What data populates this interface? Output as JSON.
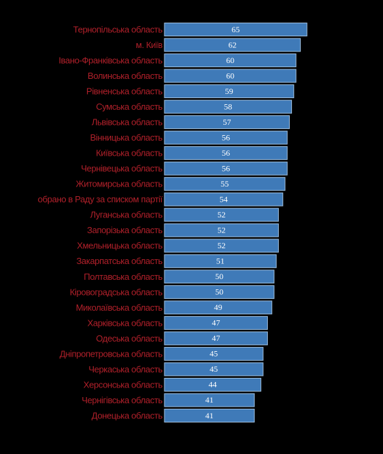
{
  "chart_data": {
    "type": "bar",
    "color": "#3f7ab8",
    "categories": [
      "Тернопільська область",
      "м. Київ",
      "Івано-Франківська область",
      "Волинська область",
      "Рівненська область",
      "Сумська область",
      "Львівська область",
      "Вінницька область",
      "Київська область",
      "Чернівецька область",
      "Житомирська область",
      "обрано в Раду за списком партії",
      "Луганська область",
      "Запорізька область",
      "Хмельницька область",
      "Закарпатська область",
      "Полтавська область",
      "Кіровоградська область",
      "Миколаївська область",
      "Харківська область",
      "Одеська область",
      "Дніпропетровська область",
      "Черкаська область",
      "Херсонська область",
      "Чернігівська область",
      "Донецька область"
    ],
    "values": [
      65,
      62,
      60,
      60,
      59,
      58,
      57,
      56,
      56,
      56,
      55,
      54,
      52,
      52,
      52,
      51,
      50,
      50,
      49,
      47,
      47,
      45,
      45,
      44,
      41,
      41
    ]
  }
}
